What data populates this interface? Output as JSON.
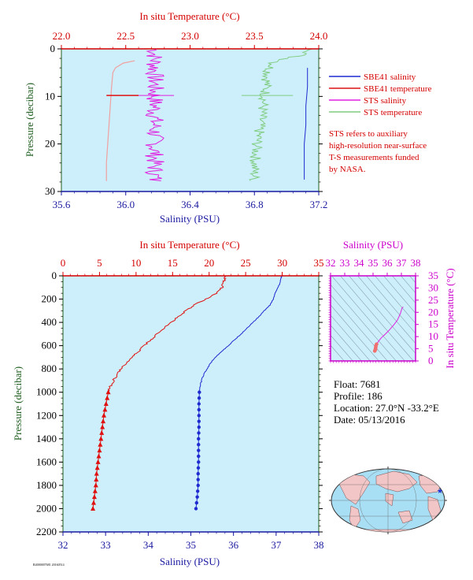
{
  "colors": {
    "plot_bg": "#cdeffb",
    "sbe_salinity": "#1f2bd0",
    "sbe_temperature": "#e01010",
    "sts_salinity": "#e020e0",
    "sts_temperature": "#80cc80",
    "sts_temp_light": "#f0a0a0",
    "red_axis": "#d40000",
    "blue_axis": "#1a1aa0",
    "green_axis": "#1f5f1f",
    "magenta_axis": "#cc00cc"
  },
  "legend": {
    "items": [
      {
        "label": "SBE41 salinity",
        "color": "#1f2bd0"
      },
      {
        "label": "SBE41 temperature",
        "color": "#e01010"
      },
      {
        "label": "STS salinity",
        "color": "#e020e0"
      },
      {
        "label": "STS temperature",
        "color": "#80cc80"
      }
    ],
    "note": [
      "STS refers to auxiliary",
      "high-resolution near-surface",
      "T-S measurements funded",
      "by NASA."
    ]
  },
  "info": {
    "float": "Float:  7681",
    "profile": "Profile:  186",
    "location": "Location:  27.0°N  -33.2°E",
    "date": "Date:  05/13/2016"
  },
  "footer_code": "R4000007681 20160514",
  "chart_data": [
    {
      "type": "line",
      "name": "near-surface",
      "top_axis_title": "In situ Temperature (°C)",
      "bottom_axis_title": "Salinity (PSU)",
      "left_axis_title": "Pressure (decibar)",
      "temp_range": [
        22.0,
        24.0
      ],
      "temp_ticks": [
        "22.0",
        "22.5",
        "23.0",
        "23.5",
        "24.0"
      ],
      "sal_range": [
        35.6,
        37.2
      ],
      "sal_ticks": [
        "35.6",
        "36.0",
        "36.4",
        "36.8",
        "37.2"
      ],
      "pres_range": [
        0,
        30
      ],
      "pres_ticks": [
        "0",
        "10",
        "20",
        "30"
      ],
      "sbe_salinity": {
        "p": [
          4,
          8,
          12,
          16,
          20,
          24,
          27.5
        ],
        "s": [
          37.13,
          37.13,
          37.12,
          37.12,
          37.11,
          37.11,
          37.11
        ]
      },
      "sts_temperature_light": {
        "p": [
          2.5,
          3,
          4,
          5,
          8,
          12,
          16,
          20,
          24,
          27.8
        ],
        "t": [
          22.57,
          22.48,
          22.42,
          22.4,
          22.39,
          22.38,
          22.37,
          22.36,
          22.35,
          22.35
        ]
      },
      "sbe_temperature_point": {
        "p": 9.8,
        "t": [
          22.35,
          22.6
        ]
      },
      "sts_salinity_center": 36.18,
      "sts_temperature_curve": {
        "p": [
          0,
          1,
          2,
          3,
          4,
          6,
          10,
          15,
          20,
          25,
          27.8
        ],
        "t": [
          23.98,
          23.9,
          23.76,
          23.65,
          23.62,
          23.6,
          23.58,
          23.55,
          23.52,
          23.5,
          23.5
        ]
      }
    },
    {
      "type": "line",
      "name": "full-profile",
      "top_axis_title": "In situ Temperature (°C)",
      "bottom_axis_title": "Salinity (PSU)",
      "left_axis_title": "Pressure (decibar)",
      "temp_range": [
        0,
        35
      ],
      "temp_ticks": [
        "0",
        "5",
        "10",
        "15",
        "20",
        "25",
        "30",
        "35"
      ],
      "sal_range": [
        32,
        38
      ],
      "sal_ticks": [
        "32",
        "33",
        "34",
        "35",
        "36",
        "37",
        "38"
      ],
      "pres_range": [
        0,
        2200
      ],
      "pres_ticks": [
        "0",
        "200",
        "400",
        "600",
        "800",
        "1000",
        "1200",
        "1400",
        "1600",
        "1800",
        "2000",
        "2200"
      ],
      "temperature": {
        "p": [
          0,
          20,
          50,
          100,
          150,
          200,
          250,
          300,
          350,
          400,
          450,
          500,
          550,
          600,
          650,
          700,
          750,
          800,
          850,
          900,
          950,
          1000,
          1100,
          1200,
          1300,
          1400,
          1500,
          1600,
          1700,
          1800,
          1900,
          2000
        ],
        "v": [
          22.2,
          22.2,
          22.0,
          21.8,
          21.0,
          19.5,
          18.0,
          16.8,
          15.8,
          14.8,
          13.8,
          12.9,
          12.0,
          11.1,
          10.3,
          9.5,
          8.7,
          8.0,
          7.4,
          6.9,
          6.5,
          6.2,
          5.9,
          5.6,
          5.4,
          5.2,
          5.0,
          4.8,
          4.6,
          4.5,
          4.3,
          4.1
        ]
      },
      "salinity": {
        "p": [
          0,
          20,
          50,
          100,
          150,
          200,
          250,
          300,
          350,
          400,
          450,
          500,
          550,
          600,
          650,
          700,
          750,
          800,
          850,
          900,
          950,
          1000,
          1100,
          1200,
          1300,
          1400,
          1500,
          1600,
          1700,
          1800,
          1900,
          2000
        ],
        "v": [
          37.13,
          37.12,
          37.1,
          37.05,
          36.98,
          36.93,
          36.86,
          36.72,
          36.6,
          36.46,
          36.32,
          36.18,
          36.02,
          35.88,
          35.72,
          35.58,
          35.46,
          35.38,
          35.3,
          35.25,
          35.22,
          35.2,
          35.19,
          35.19,
          35.19,
          35.18,
          35.18,
          35.18,
          35.17,
          35.17,
          35.15,
          35.12
        ]
      },
      "marker_start_pressure": 1000
    },
    {
      "type": "scatter",
      "name": "T-S diagram",
      "top_axis_title": "Salinity (PSU)",
      "right_axis_title": "In situ Temperature (°C)",
      "sal_range": [
        32,
        38
      ],
      "sal_ticks": [
        "32",
        "33",
        "34",
        "35",
        "36",
        "37",
        "38"
      ],
      "temp_range": [
        0,
        35
      ],
      "temp_ticks": [
        "0",
        "5",
        "10",
        "15",
        "20",
        "25",
        "30",
        "35"
      ],
      "points": {
        "s": [
          35.12,
          35.15,
          35.17,
          35.18,
          35.19,
          35.2,
          35.25,
          35.38,
          35.58,
          35.88,
          36.18,
          36.46,
          36.72,
          36.93,
          37.05,
          37.13
        ],
        "t": [
          4.1,
          4.5,
          4.8,
          5.2,
          5.6,
          6.2,
          6.9,
          8.0,
          9.5,
          11.1,
          12.9,
          14.8,
          16.8,
          19.5,
          21.8,
          22.2
        ]
      }
    }
  ]
}
